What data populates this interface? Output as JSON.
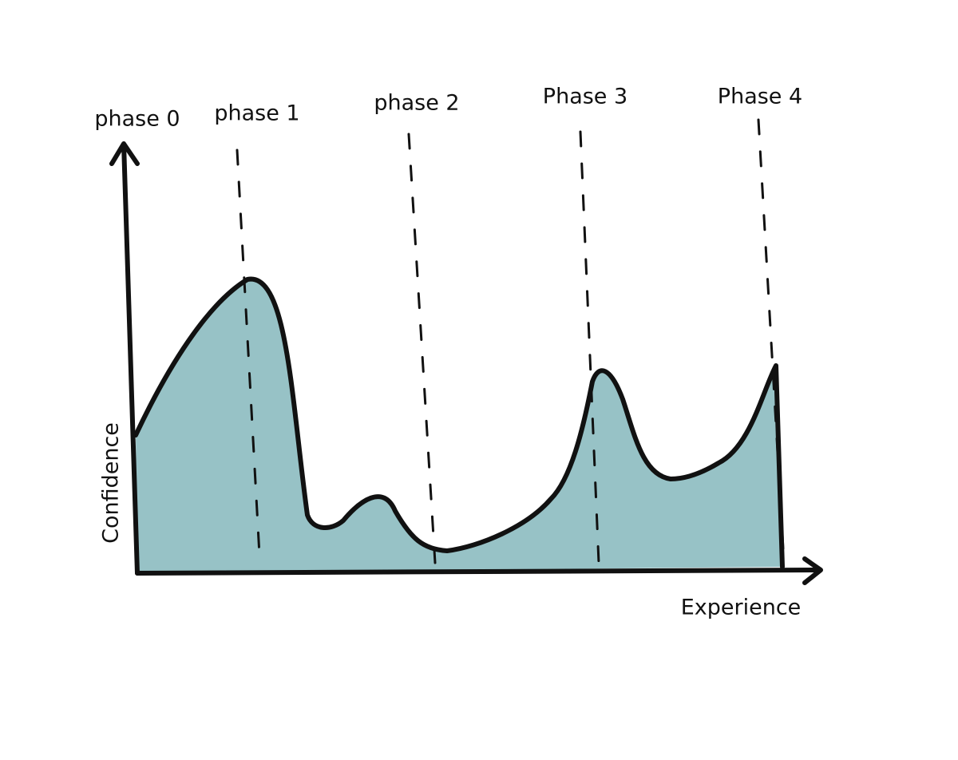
{
  "y_axis": {
    "label": "Confidence"
  },
  "x_axis": {
    "label": "Experience"
  },
  "phases": [
    {
      "label": "phase 0"
    },
    {
      "label": "phase 1"
    },
    {
      "label": "phase 2"
    },
    {
      "label": "Phase 3"
    },
    {
      "label": "Phase 4"
    }
  ]
}
